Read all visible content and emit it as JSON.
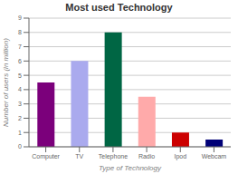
{
  "chart_data": {
    "type": "bar",
    "title": "Most used Technology",
    "xlabel": "Type of Technology",
    "ylabel": "Number of users (in million)",
    "categories": [
      "Computer",
      "TV",
      "Telephone",
      "Radio",
      "Ipod",
      "Webcam"
    ],
    "values": [
      4.5,
      6.0,
      8.0,
      3.5,
      1.0,
      0.5
    ],
    "colors": [
      "#7b007b",
      "#aaaaee",
      "#006644",
      "#ffaaaa",
      "#cc0000",
      "#000077"
    ],
    "ylim": [
      0,
      9
    ],
    "yticks": [
      0,
      1,
      2,
      3,
      4,
      5,
      6,
      7,
      8,
      9
    ],
    "grid": true
  }
}
